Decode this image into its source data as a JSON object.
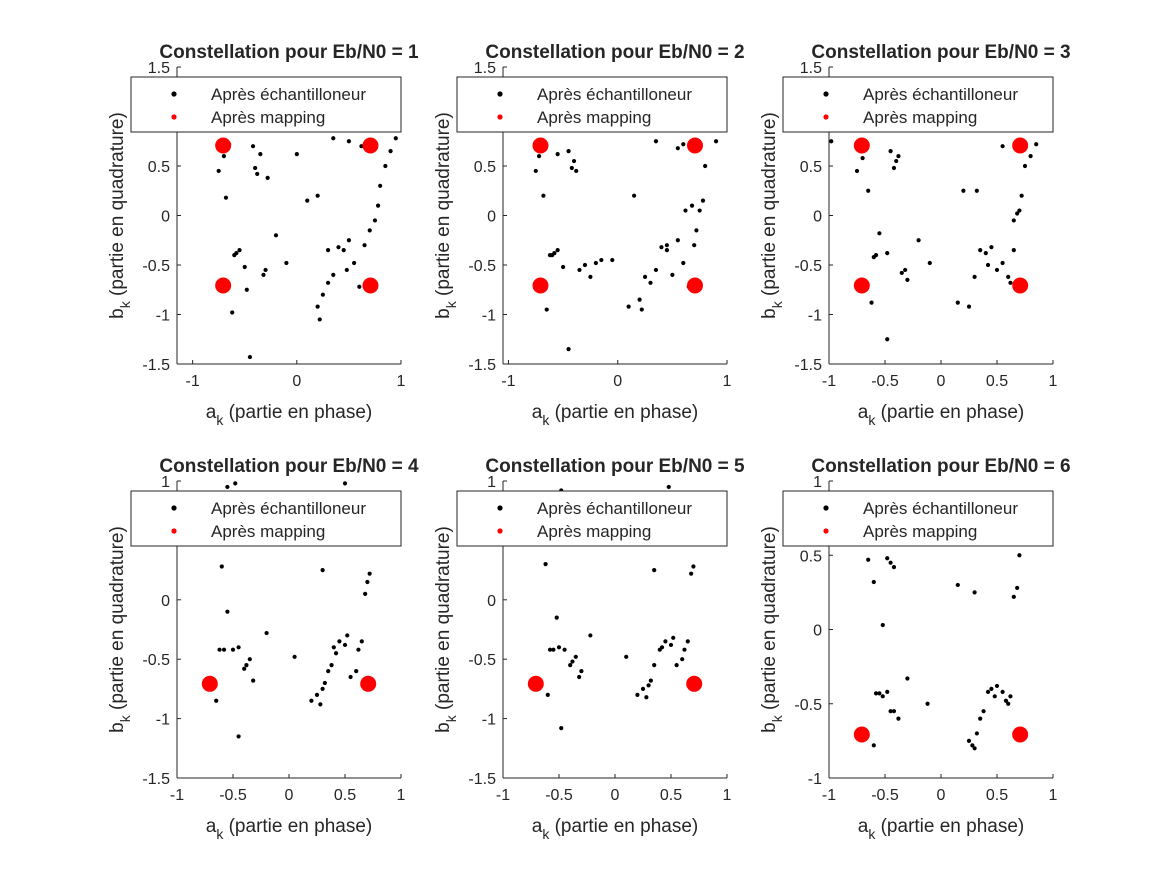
{
  "colors": {
    "received": "#000000",
    "mapped": "#ff0000",
    "axis": "#262626",
    "background": "#ffffff"
  },
  "chart_data": [
    {
      "type": "scatter",
      "title": "Constellation pour Eb/N0 = 1",
      "xlabel": {
        "base": "a",
        "sub": "k",
        "rest": " (partie en phase)"
      },
      "ylabel": {
        "base": "b",
        "sub": "k",
        "rest": " (partie en quadrature)"
      },
      "xlim": [
        -1.15,
        1.0
      ],
      "ylim": [
        -1.5,
        1.5
      ],
      "xticks": [
        -1,
        0,
        1
      ],
      "yticks": [
        -1.5,
        -1,
        -0.5,
        0,
        0.5,
        1,
        1.5
      ],
      "legend": "top",
      "grid": false,
      "series": [
        {
          "name": "Après échantilloneur",
          "marker": "dot",
          "color": "#000000",
          "x": [
            -0.75,
            -0.7,
            -0.68,
            -0.62,
            -0.6,
            -0.58,
            -0.55,
            -0.5,
            -0.48,
            -0.42,
            -0.4,
            -0.38,
            -0.35,
            -0.32,
            -0.3,
            -0.28,
            -0.2,
            -0.1,
            0,
            0.1,
            0.2,
            0.22,
            0.25,
            0.3,
            0.35,
            0.4,
            0.45,
            0.5,
            0.55,
            0.6,
            0.65,
            0.7,
            0.75,
            0.78,
            0.8,
            0.85,
            0.9,
            0.95,
            0.62,
            0.5,
            0.35,
            0.2,
            -0.45,
            -0.65,
            0.68,
            0.72,
            0.3,
            0.48
          ],
          "y": [
            0.45,
            0.6,
            0.18,
            -0.98,
            -0.4,
            -0.38,
            -0.35,
            -0.52,
            -0.75,
            0.7,
            0.48,
            0.42,
            0.62,
            -0.6,
            -0.55,
            0.38,
            -0.2,
            -0.48,
            0.62,
            0.15,
            -0.92,
            -1.05,
            -0.8,
            -0.68,
            -0.6,
            -0.32,
            -0.35,
            -0.25,
            -0.48,
            -0.72,
            -0.3,
            -0.15,
            -0.05,
            0.1,
            0.3,
            0.5,
            0.65,
            0.78,
            0.7,
            0.75,
            0.78,
            0.2,
            -1.43,
            0.72,
            0.75,
            0.7,
            -0.35,
            -0.55
          ]
        },
        {
          "name": "Après mapping",
          "marker": "circle",
          "color": "#ff0000",
          "x": [
            -0.707,
            0.707,
            -0.707,
            0.707
          ],
          "y": [
            0.707,
            0.707,
            -0.707,
            -0.707
          ]
        }
      ]
    },
    {
      "type": "scatter",
      "title": "Constellation pour Eb/N0 = 2",
      "xlabel": {
        "base": "a",
        "sub": "k",
        "rest": " (partie en phase)"
      },
      "ylabel": {
        "base": "b",
        "sub": "k",
        "rest": " (partie en quadrature)"
      },
      "xlim": [
        -1.05,
        1.0
      ],
      "ylim": [
        -1.5,
        1.5
      ],
      "xticks": [
        -1,
        0,
        1
      ],
      "yticks": [
        -1.5,
        -1,
        -0.5,
        0,
        0.5,
        1,
        1.5
      ],
      "legend": "top",
      "grid": false,
      "series": [
        {
          "name": "Après échantilloneur",
          "marker": "dot",
          "color": "#000000",
          "x": [
            -0.75,
            -0.72,
            -0.68,
            -0.65,
            -0.62,
            -0.58,
            -0.55,
            -0.5,
            -0.45,
            -0.42,
            -0.4,
            -0.38,
            -0.35,
            -0.3,
            -0.25,
            -0.2,
            -0.15,
            -0.05,
            0.1,
            0.15,
            0.2,
            0.22,
            0.25,
            0.3,
            0.35,
            0.4,
            0.45,
            0.5,
            0.55,
            0.6,
            0.65,
            0.7,
            0.72,
            0.75,
            0.78,
            0.8,
            0.9,
            -0.45,
            0.6,
            0.55,
            0.35,
            -0.55,
            -0.6,
            0.62,
            0.68,
            0.45
          ],
          "y": [
            0.45,
            0.6,
            0.2,
            -0.95,
            -0.4,
            -0.38,
            -0.35,
            -0.52,
            0.65,
            0.48,
            0.55,
            0.45,
            -0.55,
            -0.5,
            -0.62,
            -0.48,
            -0.45,
            -0.45,
            -0.92,
            0.2,
            -0.85,
            -0.95,
            -0.62,
            -0.68,
            -0.55,
            -0.32,
            -0.35,
            -0.6,
            -0.25,
            -0.48,
            -0.72,
            -0.3,
            -0.15,
            0.05,
            0.15,
            0.5,
            0.75,
            -1.35,
            0.72,
            0.68,
            0.75,
            0.62,
            -0.4,
            0.05,
            0.1,
            -0.3
          ]
        },
        {
          "name": "Après mapping",
          "marker": "circle",
          "color": "#ff0000",
          "x": [
            -0.707,
            0.707,
            -0.707,
            0.707
          ],
          "y": [
            0.707,
            0.707,
            -0.707,
            -0.707
          ]
        }
      ]
    },
    {
      "type": "scatter",
      "title": "Constellation pour Eb/N0 = 3",
      "xlabel": {
        "base": "a",
        "sub": "k",
        "rest": " (partie en phase)"
      },
      "ylabel": {
        "base": "b",
        "sub": "k",
        "rest": " (partie en quadrature)"
      },
      "xlim": [
        -1.0,
        1.0
      ],
      "ylim": [
        -1.5,
        1.5
      ],
      "xticks": [
        -1,
        -0.5,
        0,
        0.5,
        1
      ],
      "yticks": [
        -1.5,
        -1,
        -0.5,
        0,
        0.5,
        1,
        1.5
      ],
      "legend": "top",
      "grid": false,
      "series": [
        {
          "name": "Après échantilloneur",
          "marker": "dot",
          "color": "#000000",
          "x": [
            -0.98,
            -0.75,
            -0.72,
            -0.65,
            -0.62,
            -0.6,
            -0.58,
            -0.55,
            -0.48,
            -0.45,
            -0.42,
            -0.4,
            -0.38,
            -0.35,
            -0.32,
            -0.3,
            -0.2,
            -0.1,
            0.15,
            0.2,
            0.25,
            0.3,
            0.35,
            0.4,
            0.45,
            0.5,
            0.55,
            0.6,
            0.62,
            0.65,
            0.7,
            0.72,
            0.75,
            0.8,
            0.85,
            -0.48,
            0.55,
            0.65,
            0.32,
            -0.7,
            0.68,
            0.42
          ],
          "y": [
            0.75,
            0.45,
            0.65,
            0.25,
            -0.88,
            -0.42,
            -0.4,
            -0.18,
            -0.38,
            0.65,
            0.48,
            0.55,
            0.6,
            -0.58,
            -0.55,
            -0.65,
            -0.25,
            -0.48,
            -0.88,
            0.25,
            -0.92,
            -0.62,
            -0.35,
            -0.38,
            -0.32,
            -0.55,
            -0.48,
            -0.62,
            -0.68,
            -0.05,
            0.05,
            0.2,
            0.5,
            0.6,
            0.72,
            -1.25,
            0.7,
            -0.35,
            0.25,
            0.58,
            0.02,
            -0.5
          ]
        },
        {
          "name": "Après mapping",
          "marker": "circle",
          "color": "#ff0000",
          "x": [
            -0.707,
            0.707,
            -0.707,
            0.707
          ],
          "y": [
            0.707,
            0.707,
            -0.707,
            -0.707
          ]
        }
      ]
    },
    {
      "type": "scatter",
      "title": "Constellation pour Eb/N0 = 4",
      "xlabel": {
        "base": "a",
        "sub": "k",
        "rest": " (partie en phase)"
      },
      "ylabel": {
        "base": "b",
        "sub": "k",
        "rest": " (partie en quadrature)"
      },
      "xlim": [
        -1.0,
        1.0
      ],
      "ylim": [
        -1.5,
        1.0
      ],
      "xticks": [
        -1,
        -0.5,
        0,
        0.5,
        1
      ],
      "yticks": [
        -1.5,
        -1,
        -0.5,
        0,
        0.5,
        1
      ],
      "legend": "top",
      "grid": false,
      "series": [
        {
          "name": "Après échantilloneur",
          "marker": "dot",
          "color": "#000000",
          "x": [
            -0.55,
            -0.5,
            -0.48,
            -0.45,
            -0.6,
            -0.62,
            -0.58,
            -0.55,
            -0.5,
            -0.45,
            -0.4,
            -0.38,
            -0.35,
            -0.32,
            -0.2,
            0.05,
            0.2,
            0.25,
            0.28,
            0.3,
            0.32,
            0.35,
            0.38,
            0.4,
            0.42,
            0.45,
            0.5,
            0.52,
            0.55,
            0.6,
            0.62,
            0.65,
            0.68,
            0.7,
            0.72,
            -0.65,
            0.5,
            0.3,
            -0.45
          ],
          "y": [
            0.95,
            0.9,
            0.98,
            0.5,
            0.28,
            -0.42,
            -0.42,
            -0.1,
            -0.42,
            -0.4,
            -0.58,
            -0.55,
            -0.5,
            -0.68,
            -0.28,
            -0.48,
            -0.85,
            -0.8,
            -0.88,
            -0.75,
            -0.7,
            -0.6,
            -0.55,
            -0.4,
            -0.45,
            -0.35,
            -0.38,
            -0.3,
            -0.65,
            -0.6,
            -0.42,
            -0.35,
            0.05,
            0.15,
            0.22,
            -0.85,
            0.98,
            0.25,
            -1.15
          ]
        },
        {
          "name": "Après mapping",
          "marker": "circle",
          "color": "#ff0000",
          "x": [
            -0.707,
            0.707
          ],
          "y": [
            -0.707,
            -0.707
          ]
        }
      ]
    },
    {
      "type": "scatter",
      "title": "Constellation pour Eb/N0 = 5",
      "xlabel": {
        "base": "a",
        "sub": "k",
        "rest": " (partie en phase)"
      },
      "ylabel": {
        "base": "b",
        "sub": "k",
        "rest": " (partie en quadrature)"
      },
      "xlim": [
        -1.0,
        1.0
      ],
      "ylim": [
        -1.5,
        1.0
      ],
      "xticks": [
        -1,
        -0.5,
        0,
        0.5,
        1
      ],
      "yticks": [
        -1.5,
        -1,
        -0.5,
        0,
        0.5,
        1
      ],
      "legend": "top",
      "grid": false,
      "series": [
        {
          "name": "Après échantilloneur",
          "marker": "dot",
          "color": "#000000",
          "x": [
            -0.48,
            -0.42,
            -0.38,
            -0.62,
            -0.58,
            -0.55,
            -0.52,
            -0.5,
            -0.45,
            -0.4,
            -0.38,
            -0.35,
            -0.32,
            -0.3,
            -0.22,
            0.1,
            0.2,
            0.25,
            0.28,
            0.3,
            0.32,
            0.35,
            0.4,
            0.42,
            0.45,
            0.5,
            0.52,
            0.55,
            0.6,
            0.62,
            0.65,
            0.68,
            0.7,
            -0.6,
            0.48,
            0.35,
            -0.48
          ],
          "y": [
            0.92,
            0.5,
            0.55,
            0.3,
            -0.42,
            -0.42,
            -0.15,
            -0.4,
            -0.42,
            -0.55,
            -0.52,
            -0.48,
            -0.65,
            -0.6,
            -0.3,
            -0.48,
            -0.8,
            -0.75,
            -0.82,
            -0.72,
            -0.68,
            -0.55,
            -0.42,
            -0.4,
            -0.35,
            -0.38,
            -0.32,
            -0.55,
            -0.5,
            -0.42,
            -0.35,
            0.22,
            0.28,
            -0.8,
            0.95,
            0.25,
            -1.08
          ]
        },
        {
          "name": "Après mapping",
          "marker": "circle",
          "color": "#ff0000",
          "x": [
            -0.707,
            0.707
          ],
          "y": [
            -0.707,
            -0.707
          ]
        }
      ]
    },
    {
      "type": "scatter",
      "title": "Constellation pour Eb/N0 = 6",
      "xlabel": {
        "base": "a",
        "sub": "k",
        "rest": " (partie en phase)"
      },
      "ylabel": {
        "base": "b",
        "sub": "k",
        "rest": " (partie en quadrature)"
      },
      "xlim": [
        -1.0,
        1.0
      ],
      "ylim": [
        -1.0,
        1.0
      ],
      "xticks": [
        -1,
        -0.5,
        0,
        0.5,
        1
      ],
      "yticks": [
        -1,
        -0.5,
        0,
        0.5,
        1
      ],
      "legend": "top",
      "grid": false,
      "series": [
        {
          "name": "Après échantilloneur",
          "marker": "dot",
          "color": "#000000",
          "x": [
            -0.65,
            -0.6,
            -0.52,
            -0.48,
            -0.45,
            -0.42,
            -0.58,
            -0.55,
            -0.52,
            -0.48,
            -0.45,
            -0.42,
            -0.38,
            -0.3,
            -0.12,
            0.15,
            0.25,
            0.28,
            0.3,
            0.32,
            0.35,
            0.38,
            0.42,
            0.45,
            0.48,
            0.5,
            0.55,
            0.58,
            0.6,
            0.62,
            0.65,
            0.68,
            0.7,
            0.3,
            -0.6,
            -0.48
          ],
          "y": [
            0.47,
            0.32,
            0.03,
            0.48,
            0.45,
            0.42,
            -0.43,
            -0.43,
            -0.45,
            -0.42,
            -0.55,
            -0.55,
            -0.6,
            -0.33,
            -0.5,
            0.3,
            -0.75,
            -0.78,
            -0.8,
            -0.7,
            -0.6,
            -0.55,
            -0.42,
            -0.4,
            -0.45,
            -0.38,
            -0.42,
            -0.48,
            -0.5,
            -0.45,
            0.22,
            0.28,
            0.5,
            0.25,
            -0.78,
            -1.02
          ]
        },
        {
          "name": "Après mapping",
          "marker": "circle",
          "color": "#ff0000",
          "x": [
            -0.707,
            0.707
          ],
          "y": [
            -0.707,
            -0.707
          ]
        }
      ]
    }
  ]
}
